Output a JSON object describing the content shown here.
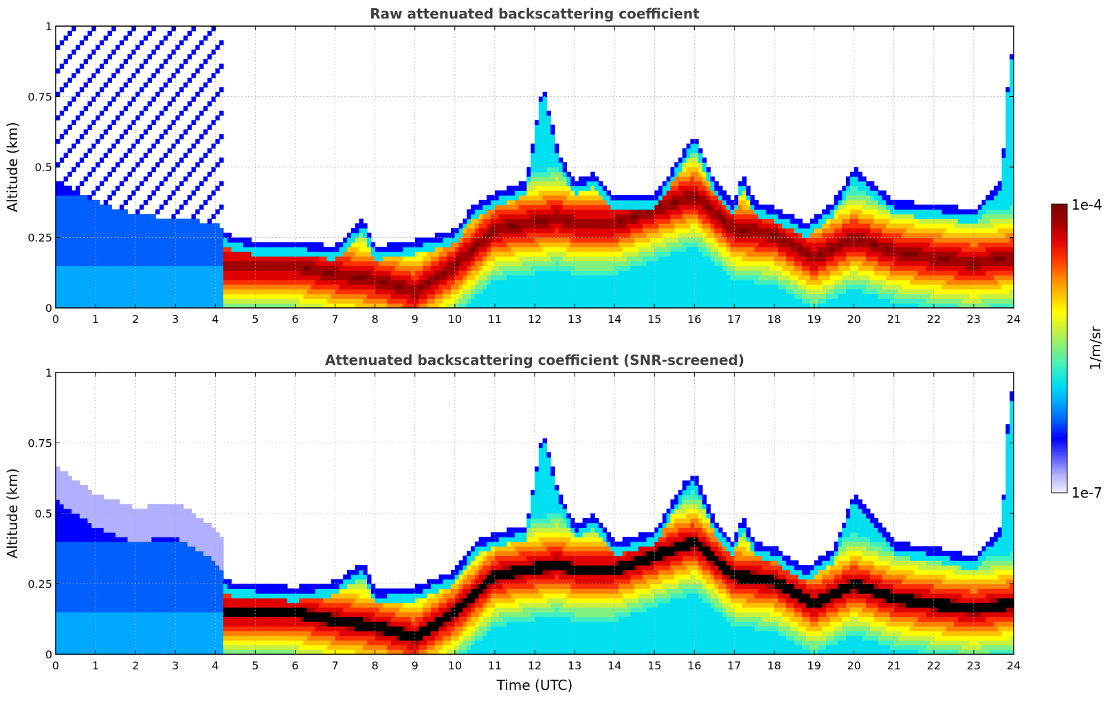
{
  "colorbar": {
    "label": "1/m/sr",
    "max_label": "1e-4",
    "min_label": "1e-7",
    "scale": "log",
    "colormap": [
      "#eeeeff",
      "#b0b0ff",
      "#5555ff",
      "#0000ff",
      "#0060ff",
      "#00a8ff",
      "#00e0f0",
      "#40f0c0",
      "#80f080",
      "#c8f040",
      "#ffff00",
      "#ffc000",
      "#ff8000",
      "#ff3000",
      "#e00000",
      "#a00000",
      "#7a0000"
    ]
  },
  "chart_data": [
    {
      "type": "heatmap",
      "name": "raw",
      "title": "Raw attenuated backscattering coefficient",
      "xlabel": "",
      "ylabel": "Altitude (km)",
      "xlim": [
        0,
        24
      ],
      "ylim": [
        0,
        1
      ],
      "x_ticks": [
        "0",
        "1",
        "2",
        "3",
        "4",
        "5",
        "6",
        "7",
        "8",
        "9",
        "10",
        "11",
        "12",
        "13",
        "14",
        "15",
        "16",
        "17",
        "18",
        "19",
        "20",
        "21",
        "22",
        "23",
        "24"
      ],
      "y_ticks": [
        "0",
        "0.25",
        "0.5",
        "0.75",
        "1"
      ],
      "grid": true,
      "z_range": [
        1e-07,
        0.0001
      ],
      "layer_top_km": {
        "time_utc": [
          0,
          1,
          2,
          3,
          4,
          4.3,
          5,
          6,
          7,
          7.7,
          8,
          9,
          10,
          10.5,
          11,
          11.8,
          12.2,
          12.6,
          13,
          13.5,
          14,
          15,
          15.7,
          16,
          16.5,
          17,
          17.2,
          17.5,
          18,
          18.8,
          19.5,
          20,
          21,
          22,
          23,
          23.7,
          23.9
        ],
        "altitude_km": [
          0.45,
          0.38,
          0.33,
          0.32,
          0.3,
          0.26,
          0.24,
          0.24,
          0.22,
          0.32,
          0.22,
          0.24,
          0.28,
          0.37,
          0.41,
          0.45,
          0.8,
          0.55,
          0.45,
          0.48,
          0.4,
          0.4,
          0.55,
          0.62,
          0.45,
          0.37,
          0.48,
          0.38,
          0.36,
          0.3,
          0.38,
          0.5,
          0.38,
          0.37,
          0.35,
          0.45,
          0.9
        ]
      },
      "layer_core_km": {
        "time_utc": [
          4.3,
          5,
          6,
          7,
          8,
          9,
          10,
          11,
          12.6,
          13,
          14,
          15,
          16,
          17,
          18,
          19,
          20,
          21,
          22,
          23,
          23.9
        ],
        "altitude_km": [
          0.15,
          0.15,
          0.15,
          0.12,
          0.1,
          0.06,
          0.15,
          0.28,
          0.32,
          0.3,
          0.3,
          0.35,
          0.4,
          0.28,
          0.26,
          0.18,
          0.25,
          0.2,
          0.18,
          0.16,
          0.18
        ]
      }
    },
    {
      "type": "heatmap",
      "name": "screened",
      "title": "Attenuated backscattering coefficient (SNR-screened)",
      "xlabel": "Time (UTC)",
      "ylabel": "Altitude (km)",
      "xlim": [
        0,
        24
      ],
      "ylim": [
        0,
        1
      ],
      "x_ticks": [
        "0",
        "1",
        "2",
        "3",
        "4",
        "5",
        "6",
        "7",
        "8",
        "9",
        "10",
        "11",
        "12",
        "13",
        "14",
        "15",
        "16",
        "17",
        "18",
        "19",
        "20",
        "21",
        "22",
        "23",
        "24"
      ],
      "y_ticks": [
        "0",
        "0.25",
        "0.5",
        "0.75",
        "1"
      ],
      "grid": true,
      "z_range": [
        1e-07,
        0.0001
      ],
      "saturated_color": "#000000",
      "layer_top_km": {
        "time_utc": [
          0,
          1,
          2,
          3,
          4,
          4.3,
          5,
          6,
          7,
          7.7,
          8,
          9,
          10,
          10.5,
          11,
          11.8,
          12.2,
          12.6,
          13,
          13.5,
          14,
          15,
          15.7,
          16,
          16.5,
          17,
          17.2,
          17.5,
          18,
          18.8,
          19.5,
          20,
          21,
          22,
          23,
          23.7,
          23.9
        ],
        "altitude_km": [
          0.55,
          0.45,
          0.4,
          0.42,
          0.33,
          0.26,
          0.25,
          0.24,
          0.26,
          0.33,
          0.23,
          0.24,
          0.3,
          0.4,
          0.43,
          0.46,
          0.8,
          0.58,
          0.46,
          0.5,
          0.4,
          0.44,
          0.6,
          0.65,
          0.48,
          0.4,
          0.5,
          0.4,
          0.38,
          0.31,
          0.38,
          0.57,
          0.4,
          0.38,
          0.35,
          0.45,
          0.93
        ]
      }
    }
  ]
}
